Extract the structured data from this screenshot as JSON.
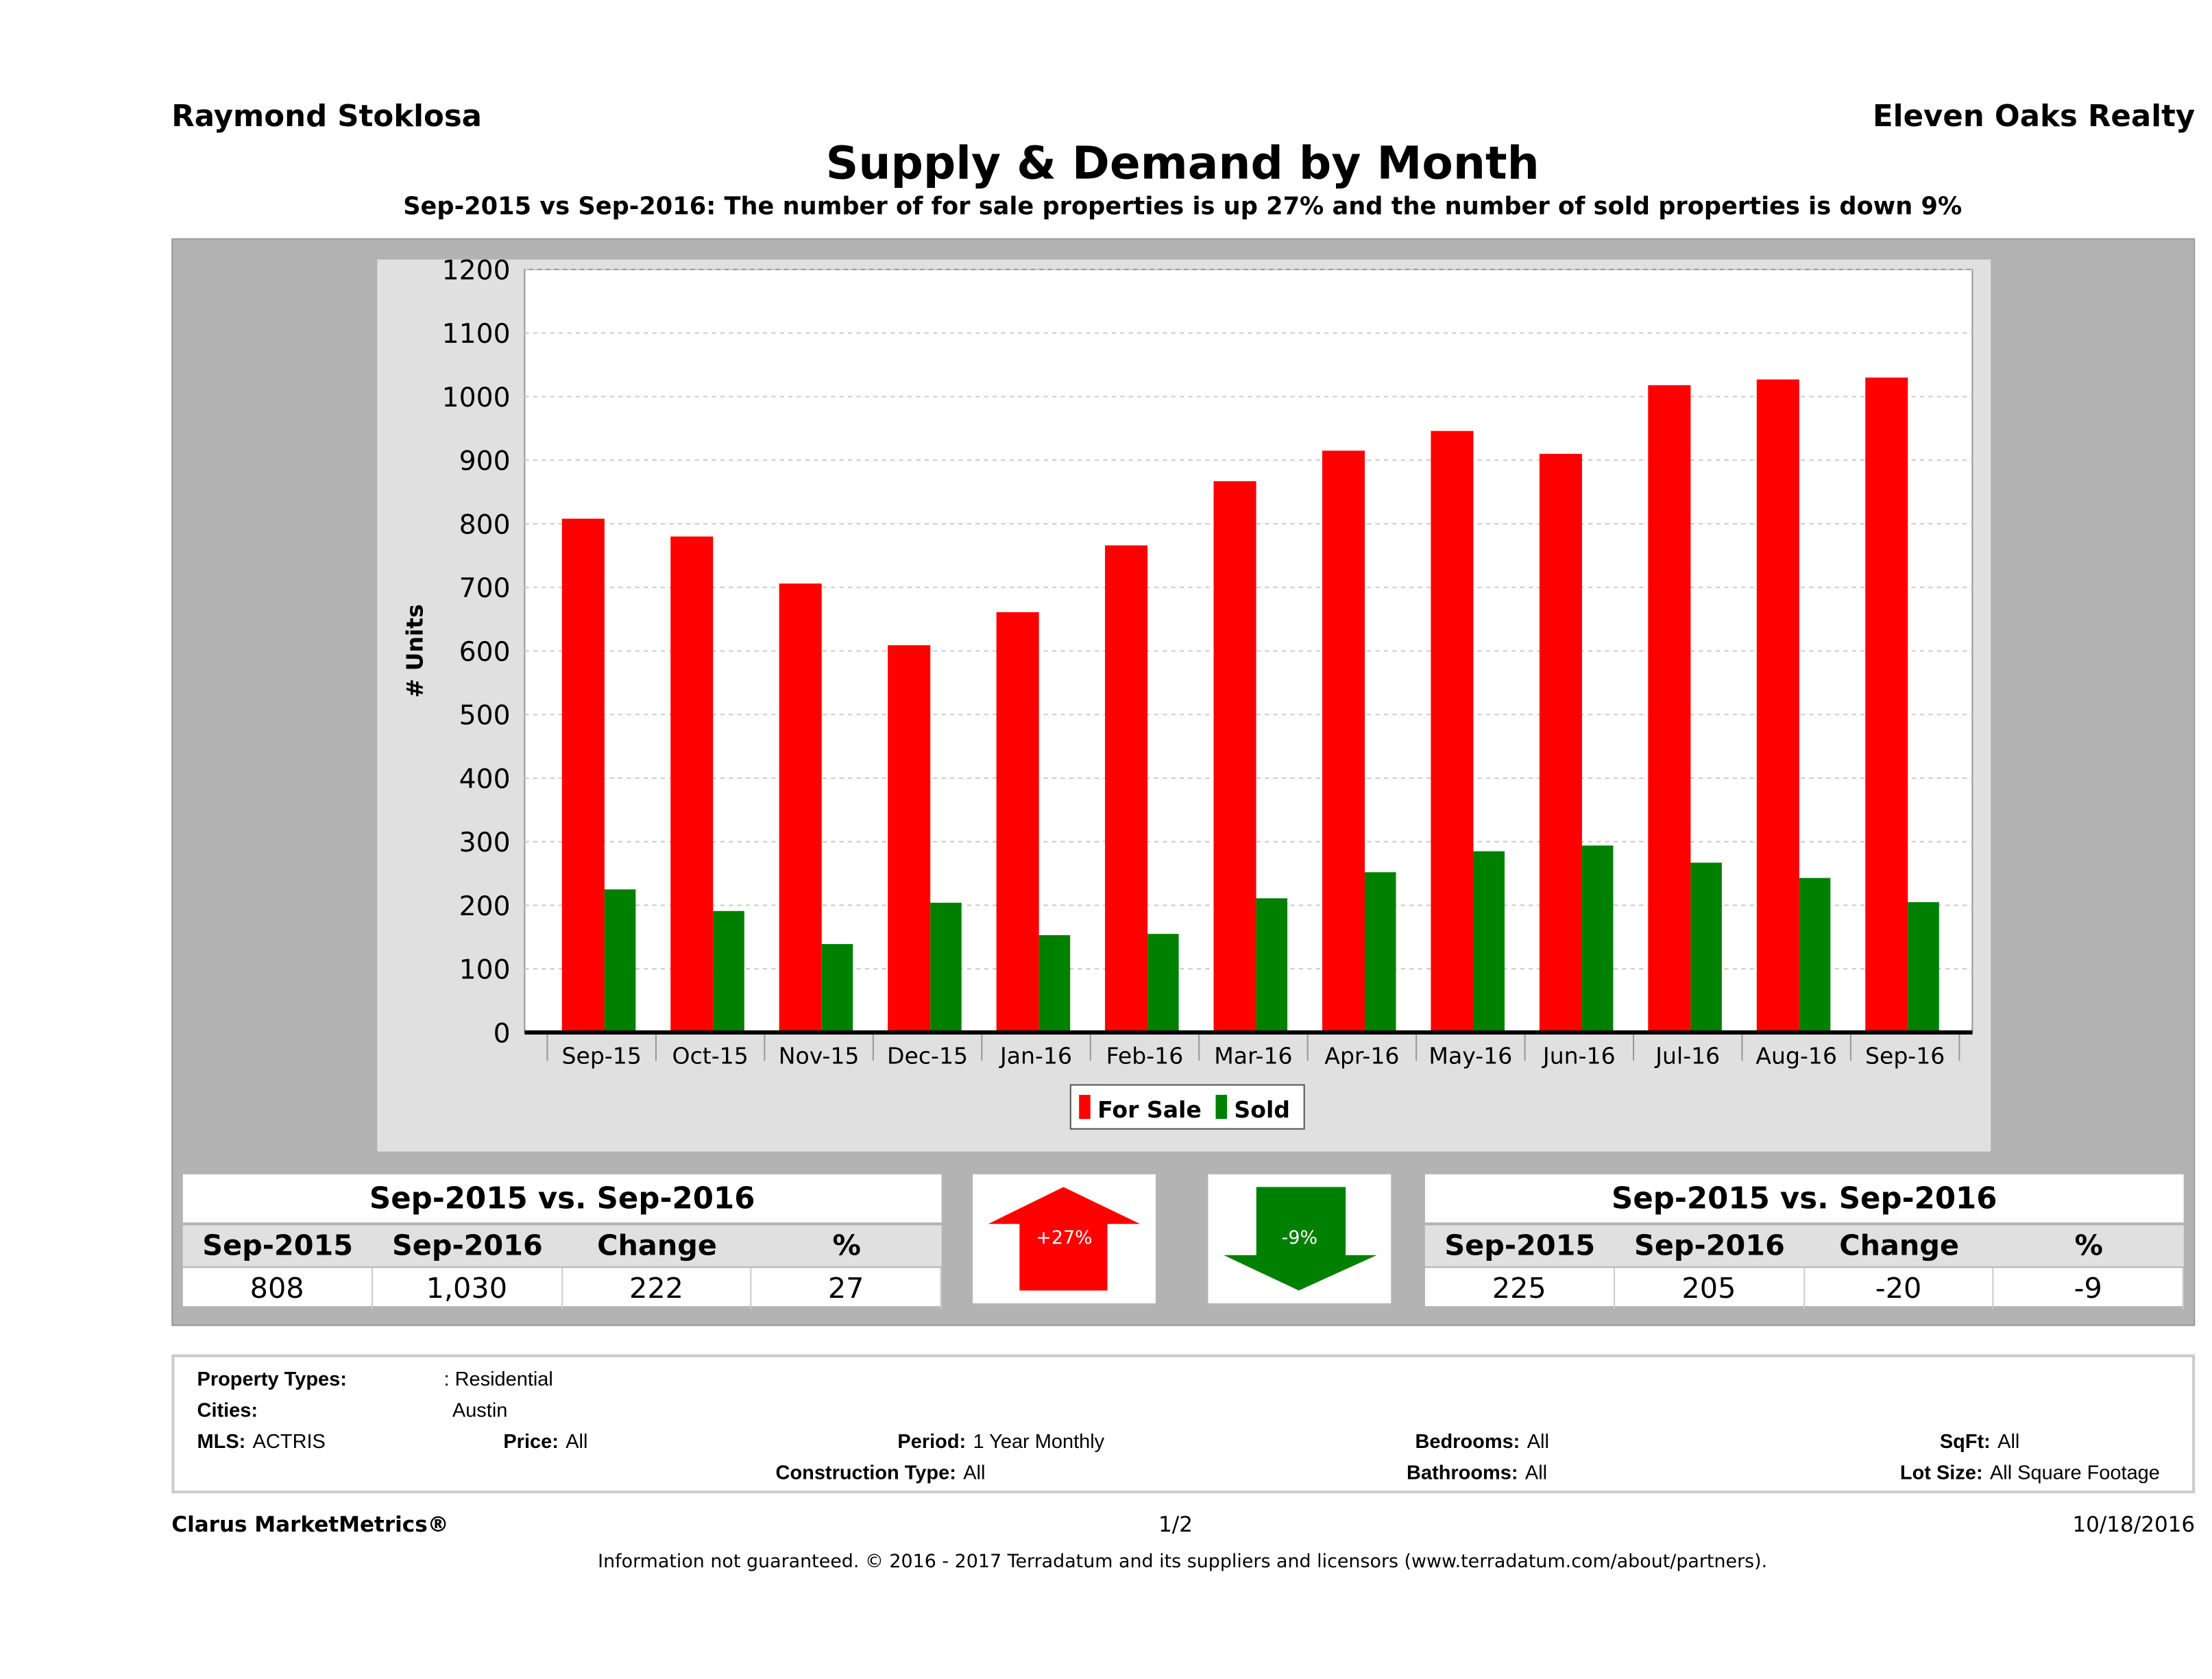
{
  "header": {
    "agent": "Raymond Stoklosa",
    "brokerage": "Eleven Oaks Realty",
    "title": "Supply & Demand by Month",
    "subtitle": "Sep-2015 vs Sep-2016: The number of for sale properties is up 27% and the number of sold properties is down 9%"
  },
  "chart_data": {
    "type": "bar",
    "ylabel": "# Units",
    "ylim": [
      0,
      1200
    ],
    "yticks": [
      0,
      100,
      200,
      300,
      400,
      500,
      600,
      700,
      800,
      900,
      1000,
      1100,
      1200
    ],
    "grid": true,
    "legend": "bottom",
    "categories": [
      "Sep-15",
      "Oct-15",
      "Nov-15",
      "Dec-15",
      "Jan-16",
      "Feb-16",
      "Mar-16",
      "Apr-16",
      "May-16",
      "Jun-16",
      "Jul-16",
      "Aug-16",
      "Sep-16"
    ],
    "series": [
      {
        "name": "For Sale",
        "color": "#ff0000",
        "values": [
          808,
          780,
          706,
          609,
          661,
          766,
          867,
          915,
          946,
          910,
          1018,
          1027,
          1030
        ]
      },
      {
        "name": "Sold",
        "color": "#008000",
        "values": [
          225,
          191,
          139,
          204,
          153,
          155,
          211,
          252,
          285,
          294,
          267,
          243,
          205
        ]
      }
    ]
  },
  "for_sale_table": {
    "title": "Sep-2015 vs. Sep-2016",
    "headers": [
      "Sep-2015",
      "Sep-2016",
      "Change",
      "%"
    ],
    "values": [
      "808",
      "1,030",
      "222",
      "27"
    ]
  },
  "sold_table": {
    "title": "Sep-2015 vs. Sep-2016",
    "headers": [
      "Sep-2015",
      "Sep-2016",
      "Change",
      "%"
    ],
    "values": [
      "225",
      "205",
      "-20",
      "-9"
    ]
  },
  "arrows": {
    "up": {
      "label": "+27%",
      "color": "#ff0000"
    },
    "down": {
      "label": "-9%",
      "color": "#008000"
    }
  },
  "filters": {
    "property_types_label": "Property Types:",
    "property_types": ": Residential",
    "cities_label": "Cities:",
    "cities": "Austin",
    "mls_label": "MLS:",
    "mls": "ACTRIS",
    "price_label": "Price:",
    "price": "All",
    "period_label": "Period:",
    "period": "1 Year Monthly",
    "bedrooms_label": "Bedrooms:",
    "bedrooms": "All",
    "sqft_label": "SqFt:",
    "sqft": "All",
    "construction_label": "Construction Type:",
    "construction": "All",
    "bathrooms_label": "Bathrooms:",
    "bathrooms": "All",
    "lot_label": "Lot Size:",
    "lot": "All Square Footage"
  },
  "footer": {
    "brand": "Clarus MarketMetrics®",
    "page": "1/2",
    "date": "10/18/2016",
    "disclaimer": "Information not guaranteed. © 2016 - 2017 Terradatum and its suppliers and licensors (www.terradatum.com/about/partners)."
  }
}
